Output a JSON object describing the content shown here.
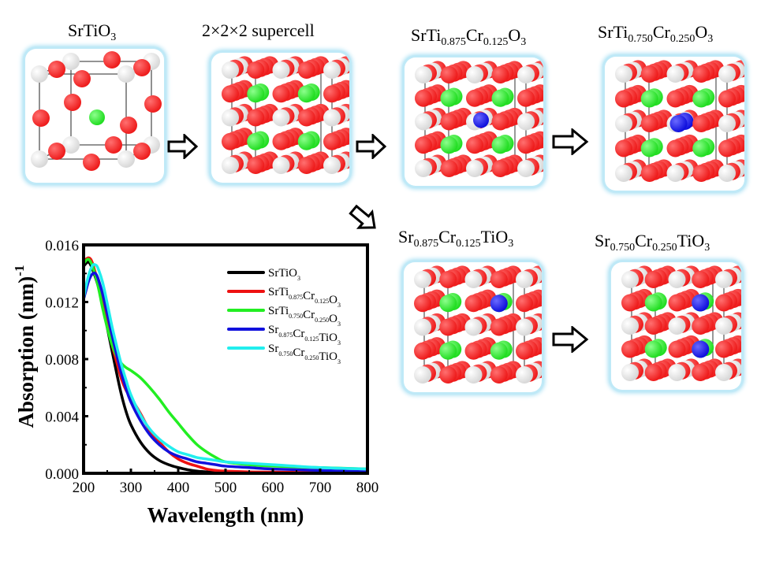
{
  "structures": [
    {
      "id": "srtio3",
      "title": {
        "base": "SrTiO",
        "sub": "3",
        "parts": [
          [
            "SrTiO",
            ""
          ],
          [
            "3",
            "sub"
          ]
        ]
      }
    },
    {
      "id": "supercell",
      "title": {
        "parts": [
          [
            "2×2×2 supercell",
            ""
          ]
        ]
      }
    },
    {
      "id": "ti-sub-0125",
      "title": {
        "parts": [
          [
            "SrTi",
            ""
          ],
          [
            "0.875",
            "sub"
          ],
          [
            "Cr",
            ""
          ],
          [
            "0.125",
            "sub"
          ],
          [
            "O",
            ""
          ],
          [
            "3",
            "sub"
          ]
        ]
      }
    },
    {
      "id": "ti-sub-0250",
      "title": {
        "parts": [
          [
            "SrTi",
            ""
          ],
          [
            "0.750",
            "sub"
          ],
          [
            "Cr",
            ""
          ],
          [
            "0.250",
            "sub"
          ],
          [
            "O",
            ""
          ],
          [
            "3",
            "sub"
          ]
        ]
      }
    },
    {
      "id": "sr-sub-0125",
      "title": {
        "parts": [
          [
            "Sr",
            ""
          ],
          [
            "0.875",
            "sub"
          ],
          [
            "Cr",
            ""
          ],
          [
            "0.125",
            "sub"
          ],
          [
            "TiO",
            ""
          ],
          [
            "3",
            "sub"
          ]
        ]
      }
    },
    {
      "id": "sr-sub-0250",
      "title": {
        "parts": [
          [
            "Sr",
            ""
          ],
          [
            "0.750",
            "sub"
          ],
          [
            "Cr",
            ""
          ],
          [
            "0.250",
            "sub"
          ],
          [
            "TiO",
            ""
          ],
          [
            "3",
            "sub"
          ]
        ]
      }
    }
  ],
  "atom_colors": {
    "O": "#ee1c1c",
    "Sr": "#22dd22",
    "Ti": "#d8d8d8",
    "Cr": "#1010dd"
  },
  "panel_glow": "#a6dff3",
  "chart_data": {
    "type": "line",
    "title": "",
    "xlabel": "Wavelength (nm)",
    "ylabel": "Absorption (nm)",
    "ylabel_superscript": "-1",
    "xlim": [
      200,
      800
    ],
    "ylim": [
      0.0,
      0.016
    ],
    "xticks": [
      200,
      300,
      400,
      500,
      600,
      700,
      800
    ],
    "xtick_labels": [
      "200",
      "300",
      "400",
      "500",
      "600",
      "700",
      "800"
    ],
    "yticks": [
      0.0,
      0.004,
      0.008,
      0.012,
      0.016
    ],
    "ytick_labels": [
      "0.000",
      "0.004",
      "0.008",
      "0.012",
      "0.016"
    ],
    "grid": false,
    "legend_position": "top-right",
    "series": [
      {
        "name": "SrTiO3",
        "label_parts": [
          [
            "SrTiO",
            ""
          ],
          [
            "3",
            "sub"
          ]
        ],
        "color": "#000000",
        "x": [
          200,
          205,
          210,
          215,
          220,
          230,
          240,
          250,
          260,
          270,
          280,
          290,
          300,
          320,
          340,
          360,
          380,
          400,
          420,
          440,
          460,
          480,
          500,
          550,
          600,
          700,
          800
        ],
        "y": [
          0.0145,
          0.0147,
          0.0148,
          0.0146,
          0.0142,
          0.0132,
          0.0118,
          0.0102,
          0.0086,
          0.007,
          0.0055,
          0.0043,
          0.0034,
          0.0022,
          0.0014,
          0.0009,
          0.0006,
          0.0004,
          0.00025,
          0.00015,
          0.0001,
          6e-05,
          4e-05,
          2e-05,
          1e-05,
          0.0,
          0.0
        ]
      },
      {
        "name": "SrTi0.875Cr0.125O3",
        "label_parts": [
          [
            "SrTi",
            ""
          ],
          [
            "0.875",
            "sub"
          ],
          [
            "Cr",
            ""
          ],
          [
            "0.125",
            "sub"
          ],
          [
            "O",
            ""
          ],
          [
            "3",
            "sub"
          ]
        ],
        "color": "#ee1111",
        "x": [
          200,
          205,
          210,
          215,
          220,
          230,
          240,
          250,
          260,
          270,
          280,
          290,
          300,
          320,
          340,
          360,
          380,
          400,
          420,
          440,
          460,
          480,
          500,
          550,
          600,
          700,
          800
        ],
        "y": [
          0.0148,
          0.015,
          0.0151,
          0.015,
          0.0146,
          0.0134,
          0.0119,
          0.0104,
          0.009,
          0.0078,
          0.0066,
          0.0058,
          0.0053,
          0.0042,
          0.003,
          0.0022,
          0.0015,
          0.001,
          0.0007,
          0.0005,
          0.0003,
          0.0002,
          0.00015,
          0.0001,
          8e-05,
          5e-05,
          4e-05
        ]
      },
      {
        "name": "SrTi0.750Cr0.250O3",
        "label_parts": [
          [
            "SrTi",
            ""
          ],
          [
            "0.750",
            "sub"
          ],
          [
            "Cr",
            ""
          ],
          [
            "0.250",
            "sub"
          ],
          [
            "O",
            ""
          ],
          [
            "3",
            "sub"
          ]
        ],
        "color": "#22ee22",
        "x": [
          200,
          205,
          210,
          215,
          220,
          230,
          240,
          250,
          260,
          270,
          280,
          290,
          300,
          320,
          340,
          360,
          380,
          400,
          420,
          440,
          460,
          480,
          500,
          550,
          600,
          700,
          800
        ],
        "y": [
          0.0147,
          0.0149,
          0.015,
          0.0148,
          0.0144,
          0.0132,
          0.0116,
          0.0102,
          0.009,
          0.0082,
          0.0077,
          0.0074,
          0.0072,
          0.0067,
          0.006,
          0.0052,
          0.0043,
          0.0035,
          0.0027,
          0.002,
          0.0015,
          0.0011,
          0.0008,
          0.0006,
          0.0005,
          0.0004,
          0.0003
        ]
      },
      {
        "name": "Sr0.875Cr0.125TiO3",
        "label_parts": [
          [
            "Sr",
            ""
          ],
          [
            "0.875",
            "sub"
          ],
          [
            "Cr",
            ""
          ],
          [
            "0.125",
            "sub"
          ],
          [
            "TiO",
            ""
          ],
          [
            "3",
            "sub"
          ]
        ],
        "color": "#1111dd",
        "x": [
          200,
          205,
          210,
          215,
          220,
          225,
          230,
          240,
          250,
          260,
          270,
          280,
          290,
          300,
          320,
          340,
          360,
          380,
          400,
          420,
          440,
          460,
          480,
          500,
          550,
          600,
          700,
          800
        ],
        "y": [
          0.0122,
          0.0128,
          0.0134,
          0.0138,
          0.014,
          0.014,
          0.0137,
          0.0126,
          0.0112,
          0.0097,
          0.0083,
          0.007,
          0.0059,
          0.005,
          0.0037,
          0.0027,
          0.002,
          0.0015,
          0.0012,
          0.001,
          0.0008,
          0.0007,
          0.0006,
          0.0005,
          0.0004,
          0.0003,
          0.0002,
          0.0001
        ]
      },
      {
        "name": "Sr0.750Cr0.250TiO3",
        "label_parts": [
          [
            "Sr",
            ""
          ],
          [
            "0.750",
            "sub"
          ],
          [
            "Cr",
            ""
          ],
          [
            "0.250",
            "sub"
          ],
          [
            "TiO",
            ""
          ],
          [
            "3",
            "sub"
          ]
        ],
        "color": "#22eeee",
        "x": [
          200,
          205,
          210,
          215,
          220,
          225,
          230,
          240,
          250,
          260,
          270,
          280,
          290,
          300,
          320,
          340,
          360,
          380,
          400,
          420,
          440,
          460,
          480,
          500,
          550,
          600,
          700,
          800
        ],
        "y": [
          0.0123,
          0.0131,
          0.0138,
          0.0143,
          0.0146,
          0.0146,
          0.0144,
          0.0134,
          0.0119,
          0.0103,
          0.0089,
          0.0076,
          0.0065,
          0.0055,
          0.0041,
          0.0031,
          0.0024,
          0.0019,
          0.0015,
          0.0013,
          0.0011,
          0.001,
          0.0009,
          0.0008,
          0.0007,
          0.0006,
          0.0004,
          0.0003
        ]
      }
    ]
  }
}
